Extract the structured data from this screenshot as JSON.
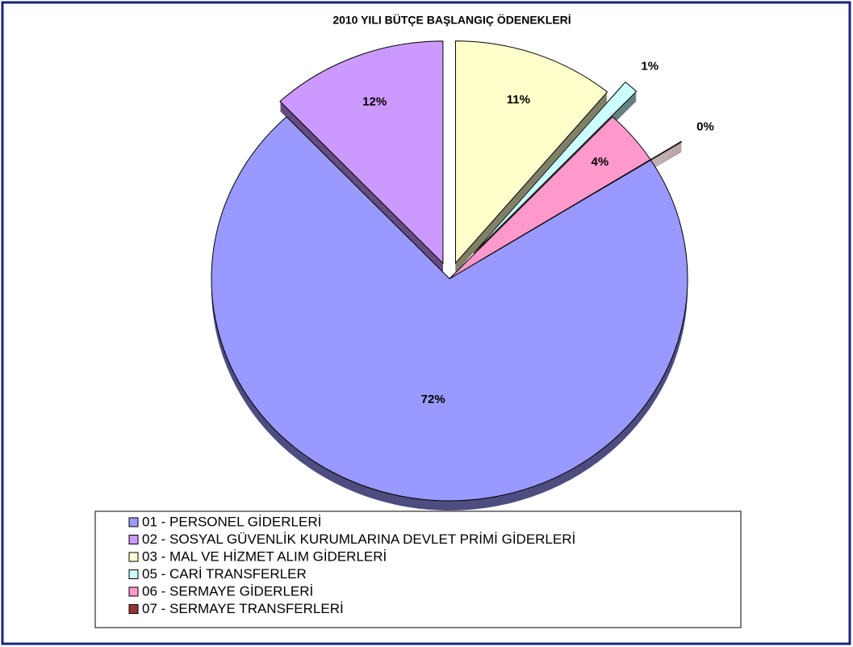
{
  "chart_data": {
    "type": "pie",
    "title": "2010 YILI BÜTÇE BAŞLANGIÇ ÖDENEKLERİ",
    "categories": [
      "01 - PERSONEL GİDERLERİ",
      "02 - SOSYAL GÜVENLİK KURUMLARINA DEVLET PRİMİ GİDERLERİ",
      "03 - MAL VE HİZMET ALIM GİDERLERİ",
      "05 - CARİ TRANSFERLER",
      "06 - SERMAYE GİDERLERİ",
      "07 - SERMAYE TRANSFERLERİ"
    ],
    "values": [
      72,
      12,
      11,
      1,
      4,
      0
    ],
    "value_labels": [
      "72%",
      "12%",
      "11%",
      "1%",
      "4%",
      "0%"
    ],
    "colors": [
      "#9999ff",
      "#cc99ff",
      "#ffffcc",
      "#ccffff",
      "#ff99cc",
      "#993333"
    ],
    "legend": "bottom"
  }
}
